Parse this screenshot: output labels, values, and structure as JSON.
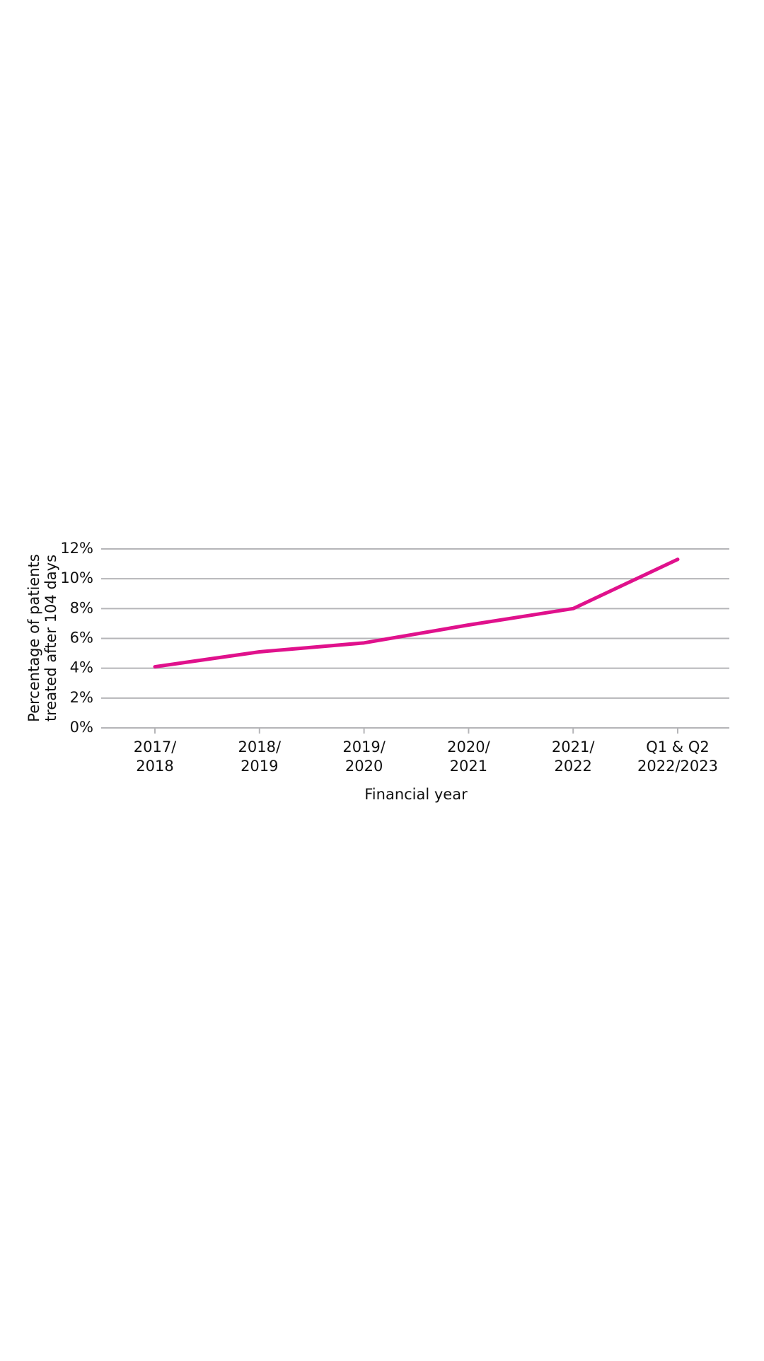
{
  "chart_data": {
    "type": "line",
    "ylabel": [
      "Percentage of patients",
      "treated after 104 days"
    ],
    "xlabel": "Financial year",
    "categories": [
      [
        "2017/",
        "2018"
      ],
      [
        "2018/",
        "2019"
      ],
      [
        "2019/",
        "2020"
      ],
      [
        "2020/",
        "2021"
      ],
      [
        "2021/",
        "2022"
      ],
      [
        "Q1 & Q2",
        "2022/2023"
      ]
    ],
    "series": [
      {
        "color": "#e0118c",
        "values": [
          4.1,
          5.1,
          5.7,
          6.9,
          8.0,
          11.3
        ]
      }
    ],
    "ylim": [
      0,
      12
    ],
    "yticks": [
      {
        "value": 0,
        "label": "0%"
      },
      {
        "value": 2,
        "label": "2%"
      },
      {
        "value": 4,
        "label": "4%"
      },
      {
        "value": 6,
        "label": "6%"
      },
      {
        "value": 8,
        "label": "8%"
      },
      {
        "value": 10,
        "label": "10%"
      },
      {
        "value": 12,
        "label": "12%"
      }
    ],
    "grid": true
  }
}
